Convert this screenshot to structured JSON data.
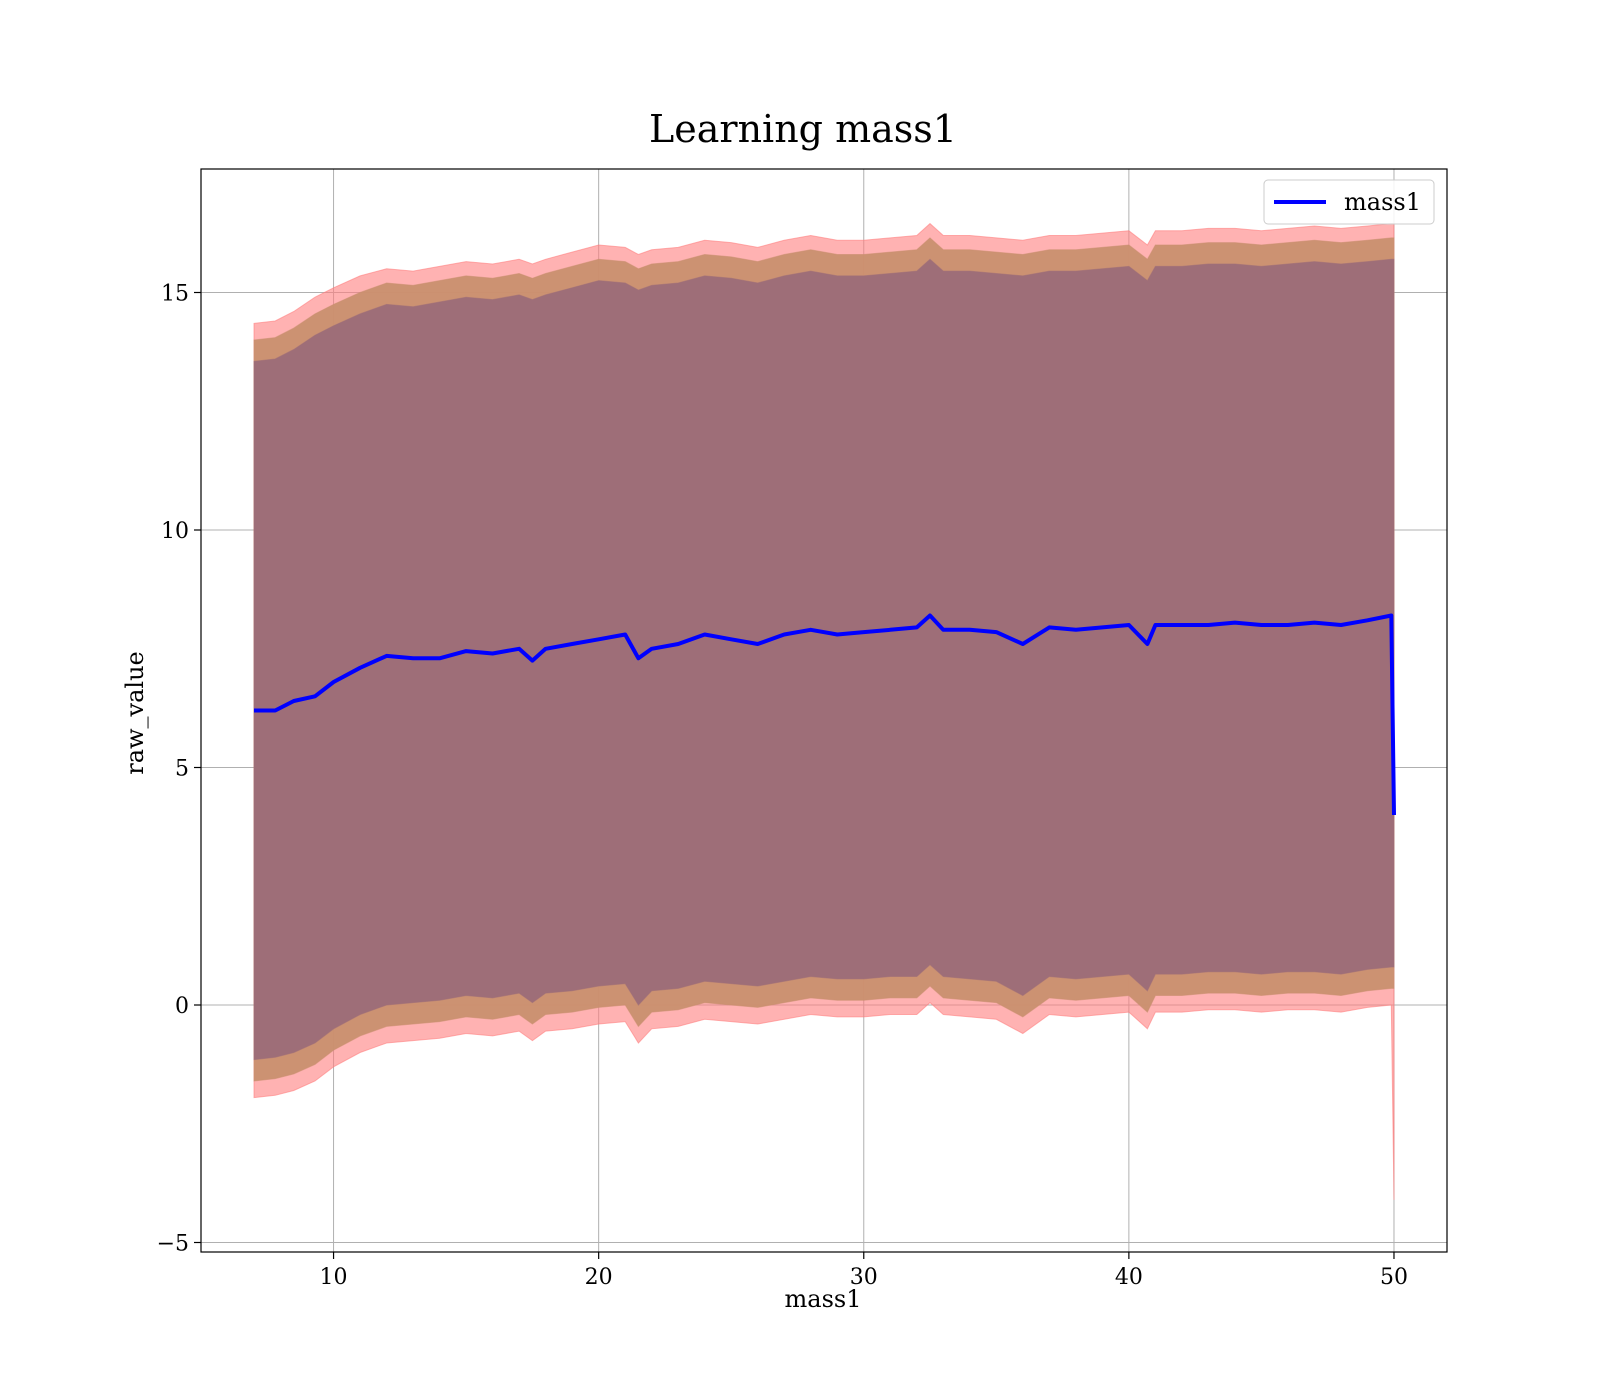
{
  "chart_data": {
    "type": "line",
    "title": "Learning mass1",
    "xlabel": "mass1",
    "ylabel": "raw_value",
    "xlim": [
      5,
      52
    ],
    "ylim": [
      -5.2,
      17.6
    ],
    "xticks": [
      10,
      20,
      30,
      40,
      50
    ],
    "yticks": [
      -5,
      0,
      5,
      10,
      15
    ],
    "xtick_labels": [
      "10",
      "20",
      "30",
      "40",
      "50"
    ],
    "ytick_labels": [
      "−5",
      "0",
      "5",
      "10",
      "15"
    ],
    "grid": true,
    "legend": {
      "position": "top-right",
      "entries": [
        "mass1"
      ]
    },
    "colors": {
      "line": "#0000ff",
      "band_outer": "#ff7f7f",
      "band_mid": "#c9906f",
      "band_inner": "#9e6e78",
      "grid": "#b0b0b0"
    },
    "series": [
      {
        "name": "mass1",
        "x": [
          7.0,
          7.8,
          8.5,
          9.3,
          10.0,
          11.0,
          12.0,
          13.0,
          14.0,
          15.0,
          16.0,
          17.0,
          17.5,
          18.0,
          19.0,
          20.0,
          21.0,
          21.5,
          22.0,
          23.0,
          24.0,
          25.0,
          26.0,
          27.0,
          28.0,
          29.0,
          30.0,
          31.0,
          32.0,
          32.5,
          33.0,
          34.0,
          35.0,
          36.0,
          37.0,
          38.0,
          39.0,
          40.0,
          40.7,
          41.0,
          42.0,
          43.0,
          44.0,
          45.0,
          46.0,
          47.0,
          48.0,
          49.0,
          49.9,
          50.0
        ],
        "y": [
          6.2,
          6.2,
          6.4,
          6.5,
          6.8,
          7.1,
          7.35,
          7.3,
          7.3,
          7.45,
          7.4,
          7.5,
          7.25,
          7.5,
          7.6,
          7.7,
          7.8,
          7.3,
          7.5,
          7.6,
          7.8,
          7.7,
          7.6,
          7.8,
          7.9,
          7.8,
          7.85,
          7.9,
          7.95,
          8.2,
          7.9,
          7.9,
          7.85,
          7.6,
          7.95,
          7.9,
          7.95,
          8.0,
          7.6,
          8.0,
          8.0,
          8.0,
          8.05,
          8.0,
          8.0,
          8.05,
          8.0,
          8.1,
          8.2,
          4.0
        ],
        "band_outer_high": [
          14.35,
          14.4,
          14.6,
          14.9,
          15.1,
          15.35,
          15.5,
          15.45,
          15.55,
          15.65,
          15.6,
          15.7,
          15.6,
          15.7,
          15.85,
          16.0,
          15.95,
          15.8,
          15.9,
          15.95,
          16.1,
          16.05,
          15.95,
          16.1,
          16.2,
          16.1,
          16.1,
          16.15,
          16.2,
          16.45,
          16.2,
          16.2,
          16.15,
          16.1,
          16.2,
          16.2,
          16.25,
          16.3,
          16.0,
          16.3,
          16.3,
          16.35,
          16.35,
          16.3,
          16.35,
          16.4,
          16.35,
          16.4,
          16.45,
          16.45
        ],
        "band_outer_low": [
          -1.95,
          -1.9,
          -1.8,
          -1.6,
          -1.3,
          -1.0,
          -0.8,
          -0.75,
          -0.7,
          -0.6,
          -0.65,
          -0.55,
          -0.75,
          -0.55,
          -0.5,
          -0.4,
          -0.35,
          -0.8,
          -0.5,
          -0.45,
          -0.3,
          -0.35,
          -0.4,
          -0.3,
          -0.2,
          -0.25,
          -0.25,
          -0.2,
          -0.2,
          0.05,
          -0.2,
          -0.25,
          -0.3,
          -0.6,
          -0.2,
          -0.25,
          -0.2,
          -0.15,
          -0.5,
          -0.15,
          -0.15,
          -0.1,
          -0.1,
          -0.15,
          -0.1,
          -0.1,
          -0.15,
          -0.05,
          0.0,
          -4.1
        ],
        "band_mid_high": [
          14.0,
          14.05,
          14.25,
          14.55,
          14.75,
          15.0,
          15.2,
          15.15,
          15.25,
          15.35,
          15.3,
          15.4,
          15.3,
          15.4,
          15.55,
          15.7,
          15.65,
          15.5,
          15.6,
          15.65,
          15.8,
          15.75,
          15.65,
          15.8,
          15.9,
          15.8,
          15.8,
          15.85,
          15.9,
          16.15,
          15.9,
          15.9,
          15.85,
          15.8,
          15.9,
          15.9,
          15.95,
          16.0,
          15.7,
          16.0,
          16.0,
          16.05,
          16.05,
          16.0,
          16.05,
          16.1,
          16.05,
          16.1,
          16.15,
          16.15
        ],
        "band_mid_low": [
          -1.6,
          -1.55,
          -1.45,
          -1.25,
          -0.95,
          -0.65,
          -0.45,
          -0.4,
          -0.35,
          -0.25,
          -0.3,
          -0.2,
          -0.4,
          -0.2,
          -0.15,
          -0.05,
          0.0,
          -0.45,
          -0.15,
          -0.1,
          0.05,
          0.0,
          -0.05,
          0.05,
          0.15,
          0.1,
          0.1,
          0.15,
          0.15,
          0.4,
          0.15,
          0.1,
          0.05,
          -0.25,
          0.15,
          0.1,
          0.15,
          0.2,
          -0.15,
          0.2,
          0.2,
          0.25,
          0.25,
          0.2,
          0.25,
          0.25,
          0.2,
          0.3,
          0.35,
          0.35
        ],
        "band_inner_high": [
          13.55,
          13.6,
          13.8,
          14.1,
          14.3,
          14.55,
          14.75,
          14.7,
          14.8,
          14.9,
          14.85,
          14.95,
          14.85,
          14.95,
          15.1,
          15.25,
          15.2,
          15.05,
          15.15,
          15.2,
          15.35,
          15.3,
          15.2,
          15.35,
          15.45,
          15.35,
          15.35,
          15.4,
          15.45,
          15.7,
          15.45,
          15.45,
          15.4,
          15.35,
          15.45,
          15.45,
          15.5,
          15.55,
          15.25,
          15.55,
          15.55,
          15.6,
          15.6,
          15.55,
          15.6,
          15.65,
          15.6,
          15.65,
          15.7,
          15.7
        ],
        "band_inner_low": [
          -1.15,
          -1.1,
          -1.0,
          -0.8,
          -0.5,
          -0.2,
          0.0,
          0.05,
          0.1,
          0.2,
          0.15,
          0.25,
          0.05,
          0.25,
          0.3,
          0.4,
          0.45,
          0.0,
          0.3,
          0.35,
          0.5,
          0.45,
          0.4,
          0.5,
          0.6,
          0.55,
          0.55,
          0.6,
          0.6,
          0.85,
          0.6,
          0.55,
          0.5,
          0.2,
          0.6,
          0.55,
          0.6,
          0.65,
          0.3,
          0.65,
          0.65,
          0.7,
          0.7,
          0.65,
          0.7,
          0.7,
          0.65,
          0.75,
          0.8,
          0.8
        ]
      }
    ]
  }
}
